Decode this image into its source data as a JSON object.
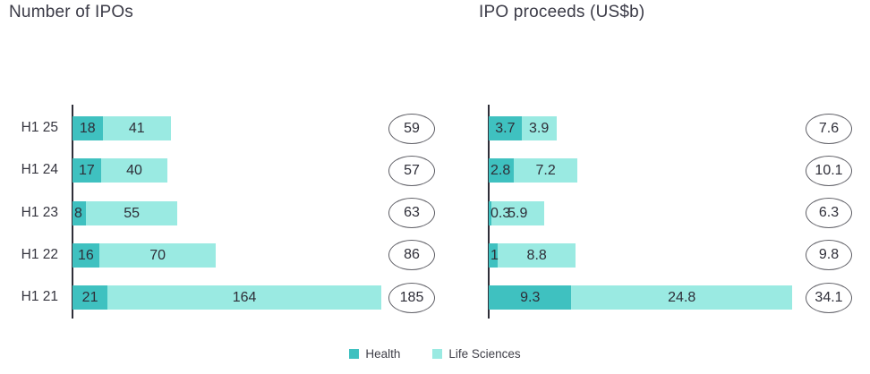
{
  "page": {
    "background": "#ffffff",
    "text_color": "#2e2e38"
  },
  "legend": {
    "items": [
      {
        "label": "Health",
        "color": "#3fc1c0"
      },
      {
        "label": "Life Sciences",
        "color": "#9aeae2"
      }
    ]
  },
  "chart_data": [
    {
      "type": "bar",
      "orientation": "horizontal",
      "stacked": true,
      "title": "Number of IPOs",
      "categories": [
        "H1 25",
        "H1 24",
        "H1 23",
        "H1 22",
        "H1 21"
      ],
      "series": [
        {
          "name": "Health",
          "color": "#3fc1c0",
          "values": [
            18,
            17,
            8,
            16,
            21
          ]
        },
        {
          "name": "Life Sciences",
          "color": "#9aeae2",
          "values": [
            41,
            40,
            55,
            70,
            164
          ]
        }
      ],
      "totals": [
        59,
        57,
        63,
        86,
        185
      ],
      "xlim": [
        0,
        185
      ],
      "value_labels": "inside-segments",
      "totals_style": "circled-right",
      "grid": false,
      "legend_position": "bottom-shared"
    },
    {
      "type": "bar",
      "orientation": "horizontal",
      "stacked": true,
      "title": "IPO proceeds (US$b)",
      "categories": [
        "H1 25",
        "H1 24",
        "H1 23",
        "H1 22",
        "H1 21"
      ],
      "series": [
        {
          "name": "Health",
          "color": "#3fc1c0",
          "values": [
            3.7,
            2.8,
            0.3,
            1,
            9.3
          ]
        },
        {
          "name": "Life Sciences",
          "color": "#9aeae2",
          "values": [
            3.9,
            7.2,
            5.9,
            8.8,
            24.8
          ]
        }
      ],
      "totals": [
        7.6,
        10.1,
        6.3,
        9.8,
        34.1
      ],
      "xlim": [
        0,
        34.1
      ],
      "value_labels": "inside-segments",
      "totals_style": "circled-right",
      "grid": false,
      "legend_position": "bottom-shared"
    }
  ]
}
